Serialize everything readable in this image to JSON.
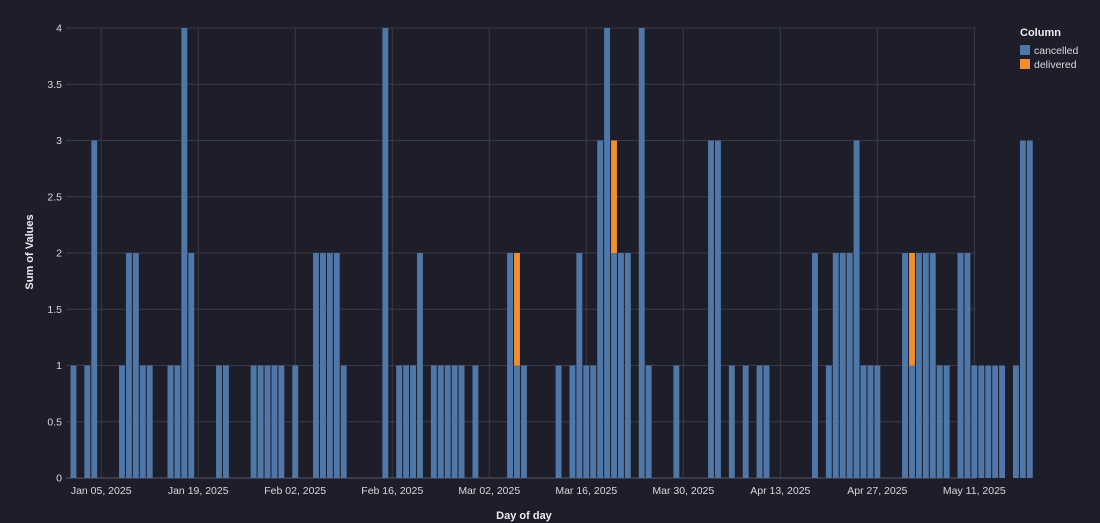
{
  "chart_data": {
    "type": "bar",
    "stacked": true,
    "x_start": "2025-01-01",
    "xlabel": "Day of day",
    "ylabel": "Sum of Values",
    "ylim": [
      0,
      4
    ],
    "y_ticks": [
      "0",
      "0.5",
      "1",
      "1.5",
      "2",
      "2.5",
      "3",
      "3.5",
      "4"
    ],
    "x_ticks": [
      {
        "date": "2025-01-05",
        "label": "Jan 05, 2025"
      },
      {
        "date": "2025-01-19",
        "label": "Jan 19, 2025"
      },
      {
        "date": "2025-02-02",
        "label": "Feb 02, 2025"
      },
      {
        "date": "2025-02-16",
        "label": "Feb 16, 2025"
      },
      {
        "date": "2025-03-02",
        "label": "Mar 02, 2025"
      },
      {
        "date": "2025-03-16",
        "label": "Mar 16, 2025"
      },
      {
        "date": "2025-03-30",
        "label": "Mar 30, 2025"
      },
      {
        "date": "2025-04-13",
        "label": "Apr 13, 2025"
      },
      {
        "date": "2025-04-27",
        "label": "Apr 27, 2025"
      },
      {
        "date": "2025-05-11",
        "label": "May 11, 2025"
      }
    ],
    "grid": true,
    "legend": {
      "title": "Column",
      "placement": "top-right"
    },
    "series": [
      {
        "name": "cancelled",
        "color": "#4f77a8",
        "values": [
          1,
          0,
          1,
          3,
          0,
          0,
          0,
          1,
          2,
          2,
          1,
          1,
          0,
          0,
          1,
          1,
          4,
          2,
          0,
          0,
          0,
          1,
          1,
          0,
          0,
          0,
          1,
          1,
          1,
          1,
          1,
          0,
          1,
          0,
          0,
          2,
          2,
          2,
          2,
          1,
          0,
          0,
          0,
          0,
          0,
          4,
          0,
          1,
          1,
          1,
          2,
          0,
          1,
          1,
          1,
          1,
          1,
          0,
          1,
          0,
          0,
          0,
          0,
          2,
          1,
          1,
          0,
          0,
          0,
          0,
          1,
          0,
          1,
          2,
          1,
          1,
          3,
          4,
          2,
          2,
          2,
          0,
          4,
          1,
          0,
          0,
          0,
          1,
          0,
          0,
          0,
          0,
          3,
          3,
          0,
          1,
          0,
          1,
          0,
          1,
          1,
          0,
          0,
          0,
          0,
          0,
          0,
          2,
          0,
          1,
          2,
          2,
          2,
          3,
          1,
          1,
          1,
          0,
          0,
          0,
          2,
          1,
          2,
          2,
          2,
          1,
          1,
          0,
          2,
          2,
          1,
          1,
          1,
          1,
          1,
          0,
          1,
          3,
          3
        ]
      },
      {
        "name": "delivered",
        "color": "#f28e2b",
        "values": [
          0,
          0,
          0,
          0,
          0,
          0,
          0,
          0,
          0,
          0,
          0,
          0,
          0,
          0,
          0,
          0,
          0,
          0,
          0,
          0,
          0,
          0,
          0,
          0,
          0,
          0,
          0,
          0,
          0,
          0,
          0,
          0,
          0,
          0,
          0,
          0,
          0,
          0,
          0,
          0,
          0,
          0,
          0,
          0,
          0,
          0,
          0,
          0,
          0,
          0,
          0,
          0,
          0,
          0,
          0,
          0,
          0,
          0,
          0,
          0,
          0,
          0,
          0,
          0,
          1,
          0,
          0,
          0,
          0,
          0,
          0,
          0,
          0,
          0,
          0,
          0,
          0,
          0,
          1,
          0,
          0,
          0,
          0,
          0,
          0,
          0,
          0,
          0,
          0,
          0,
          0,
          0,
          0,
          0,
          0,
          0,
          0,
          0,
          0,
          0,
          0,
          0,
          0,
          0,
          0,
          0,
          0,
          0,
          0,
          0,
          0,
          0,
          0,
          0,
          0,
          0,
          0,
          0,
          0,
          0,
          0,
          1,
          0,
          0,
          0,
          0,
          0,
          0,
          0,
          0,
          0,
          0,
          0,
          0,
          0,
          0,
          0,
          0,
          0
        ]
      }
    ]
  }
}
